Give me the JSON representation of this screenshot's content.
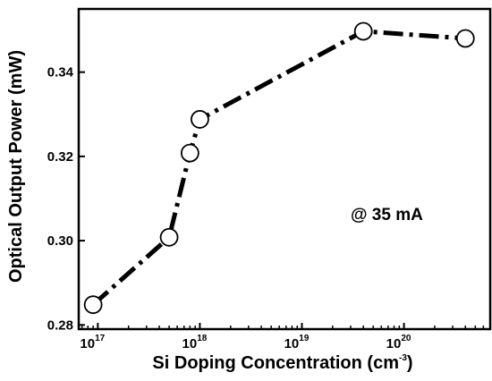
{
  "chart_data": {
    "type": "line",
    "title": "",
    "xlabel": "Si Doping Concentration (cm",
    "xlabel_sup": "-3",
    "xlabel_tail": ")",
    "ylabel": "Optical Output Power (mW)",
    "x_scale": "log",
    "xlim": [
      6.5e+16,
      7e+20
    ],
    "ylim": [
      0.279,
      0.355
    ],
    "x_ticks": [
      {
        "value": 1e+17,
        "base": "10",
        "exp": "17"
      },
      {
        "value": 1e+18,
        "base": "10",
        "exp": "18"
      },
      {
        "value": 1e+19,
        "base": "10",
        "exp": "19"
      },
      {
        "value": 1e+20,
        "base": "10",
        "exp": "20"
      }
    ],
    "y_ticks": [
      {
        "value": 0.28,
        "label": "0.28"
      },
      {
        "value": 0.3,
        "label": "0.30"
      },
      {
        "value": 0.32,
        "label": "0.32"
      },
      {
        "value": 0.34,
        "label": "0.34"
      }
    ],
    "grid": false,
    "line_style": "dash-dot",
    "marker": "open-circle",
    "series": [
      {
        "x": [
          9e+16,
          5e+17,
          8e+17,
          1e+18,
          4e+19,
          4e+20
        ],
        "y": [
          0.2848,
          0.3008,
          0.3208,
          0.3288,
          0.3497,
          0.348
        ]
      }
    ],
    "annotation": "@ 35 mA"
  }
}
